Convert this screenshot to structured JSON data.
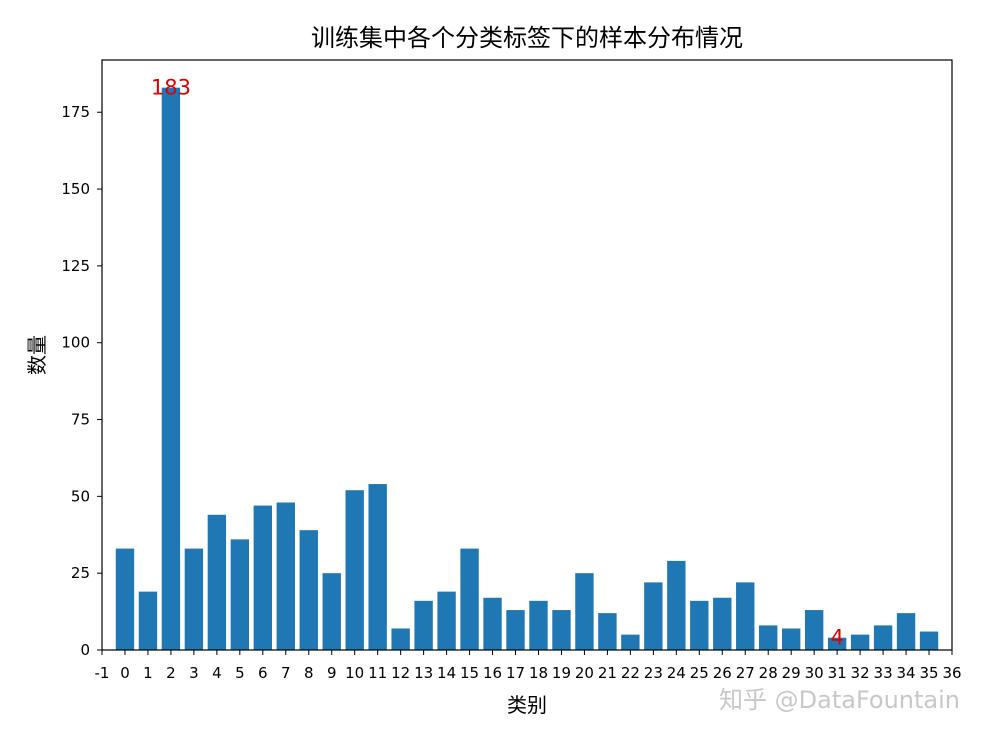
{
  "chart_data": {
    "type": "bar",
    "title": "训练集中各个分类标签下的样本分布情况",
    "xlabel": "类别",
    "ylabel": "数量",
    "x": [
      0,
      1,
      2,
      3,
      4,
      5,
      6,
      7,
      8,
      9,
      10,
      11,
      12,
      13,
      14,
      15,
      16,
      17,
      18,
      19,
      20,
      21,
      22,
      23,
      24,
      25,
      26,
      27,
      28,
      29,
      30,
      31,
      32,
      33,
      34,
      35
    ],
    "values": [
      33,
      19,
      183,
      33,
      44,
      36,
      47,
      48,
      39,
      25,
      52,
      54,
      7,
      16,
      19,
      33,
      17,
      13,
      16,
      13,
      25,
      12,
      5,
      22,
      29,
      16,
      17,
      22,
      8,
      7,
      13,
      4,
      5,
      8,
      12,
      6
    ],
    "xlim": [
      -1,
      36
    ],
    "ylim": [
      0,
      192
    ],
    "xticks": [
      -1,
      0,
      1,
      2,
      3,
      4,
      5,
      6,
      7,
      8,
      9,
      10,
      11,
      12,
      13,
      14,
      15,
      16,
      17,
      18,
      19,
      20,
      21,
      22,
      23,
      24,
      25,
      26,
      27,
      28,
      29,
      30,
      31,
      32,
      33,
      34,
      35,
      36
    ],
    "yticks": [
      0,
      25,
      50,
      75,
      100,
      125,
      150,
      175
    ],
    "bar_color": "#1f77b4",
    "grid": false,
    "annotations": [
      {
        "x": 2,
        "value": 183,
        "text": "183",
        "color": "#e00000"
      },
      {
        "x": 31,
        "value": 4,
        "text": "4",
        "color": "#e00000"
      }
    ]
  },
  "watermark": "知乎 @DataFountain"
}
